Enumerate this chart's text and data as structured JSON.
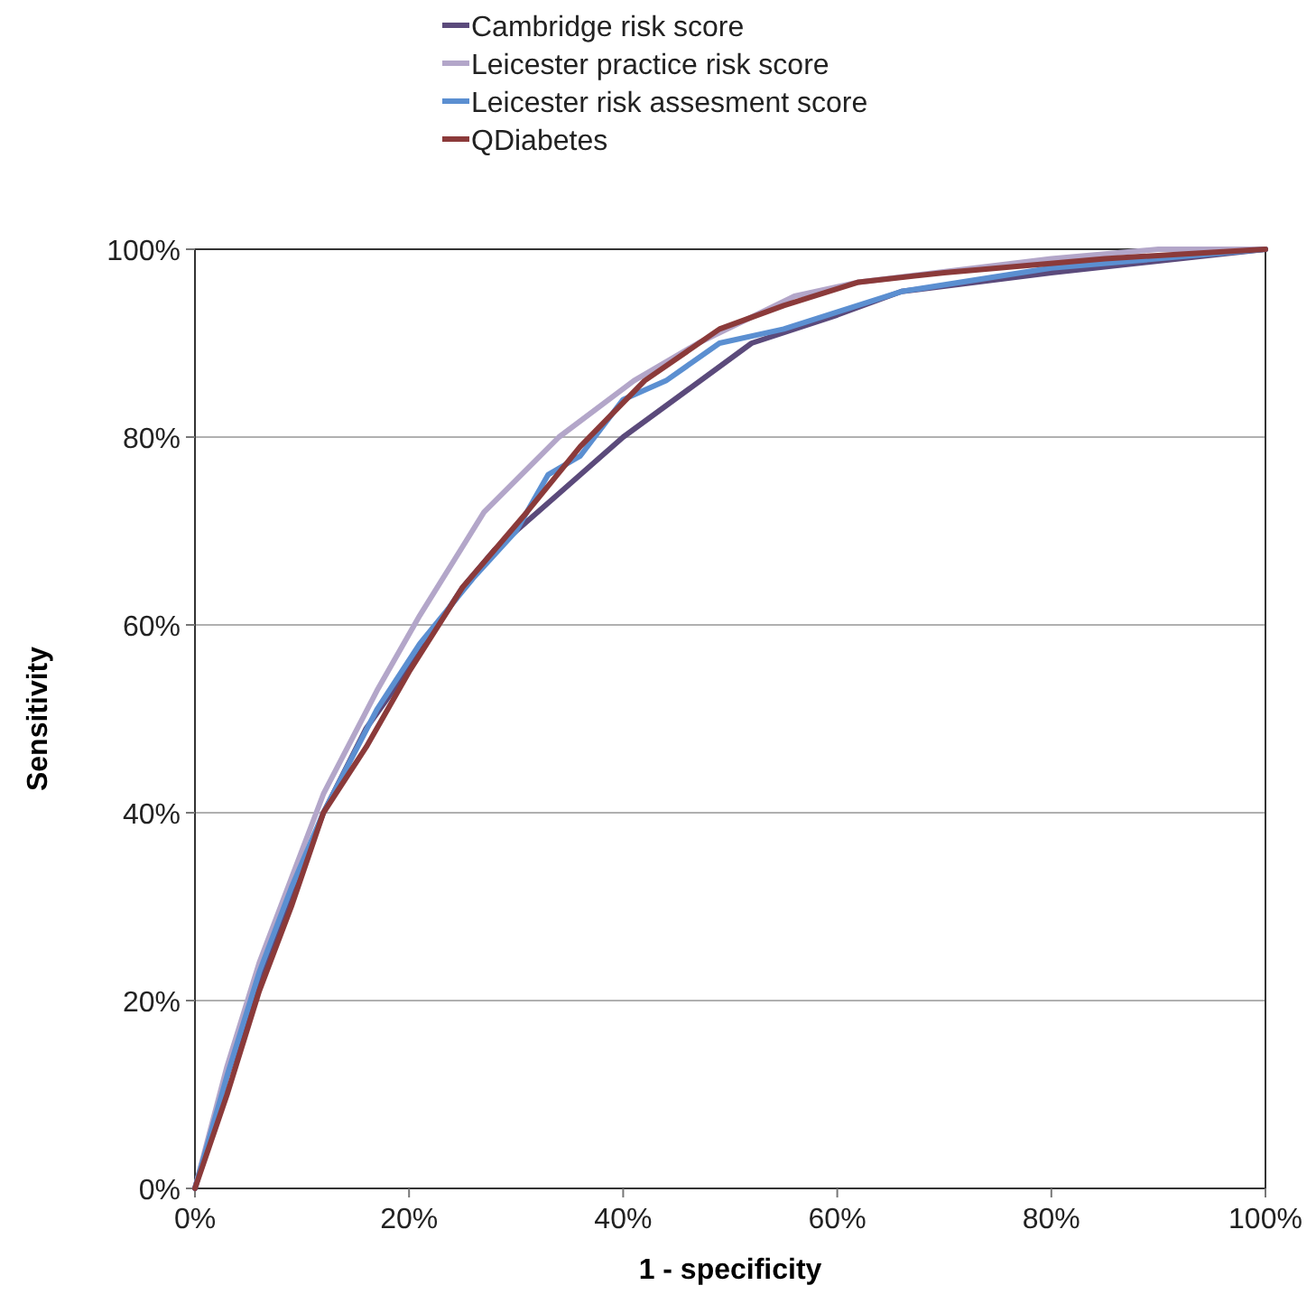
{
  "chart_data": {
    "type": "line",
    "xlabel": "1 - specificity",
    "ylabel": "Sensitivity",
    "legend": "top",
    "grid": "y",
    "xlim": [
      0,
      100
    ],
    "ylim": [
      0,
      100
    ],
    "xticks": [
      {
        "value": 0,
        "label": "0%"
      },
      {
        "value": 20,
        "label": "20%"
      },
      {
        "value": 40,
        "label": "40%"
      },
      {
        "value": 60,
        "label": "60%"
      },
      {
        "value": 80,
        "label": "80%"
      },
      {
        "value": 100,
        "label": "100%"
      }
    ],
    "yticks": [
      {
        "value": 0,
        "label": "0%"
      },
      {
        "value": 20,
        "label": "20%"
      },
      {
        "value": 40,
        "label": "40%"
      },
      {
        "value": 60,
        "label": "60%"
      },
      {
        "value": 80,
        "label": "80%"
      },
      {
        "value": 100,
        "label": "100%"
      }
    ],
    "series": [
      {
        "name": "Cambridge risk score",
        "color": "#5b4a7b",
        "x": [
          0,
          3,
          6,
          9,
          12,
          16,
          21,
          25,
          28,
          34,
          40,
          46,
          52,
          60,
          66,
          80,
          100
        ],
        "values": [
          0,
          12,
          22,
          31,
          40,
          49,
          57,
          64,
          68,
          74,
          80,
          85,
          90,
          93,
          95.5,
          97.5,
          100
        ]
      },
      {
        "name": "Leicester practice risk score",
        "color": "#b3a6c9",
        "x": [
          0,
          3,
          6,
          9,
          12,
          17,
          21,
          27,
          34,
          41,
          47,
          56,
          62,
          80,
          90,
          100
        ],
        "values": [
          0,
          13,
          24,
          33,
          42,
          53,
          61,
          72,
          80,
          86,
          90,
          95,
          96.5,
          99,
          100,
          100
        ]
      },
      {
        "name": "Leicester risk assesment score",
        "color": "#5b8fd1",
        "x": [
          0,
          3,
          6,
          9,
          12,
          17,
          21,
          26,
          30,
          33,
          36,
          40,
          44,
          49,
          55,
          66,
          80,
          100
        ],
        "values": [
          0,
          12,
          23,
          32,
          40,
          51,
          58,
          65,
          70,
          76,
          78,
          84,
          86,
          90,
          91.5,
          95.5,
          98,
          100
        ]
      },
      {
        "name": "QDiabetes",
        "color": "#8b3a3a",
        "x": [
          0,
          3,
          6,
          9,
          12,
          16,
          20,
          25,
          31,
          36,
          42,
          49,
          55,
          62,
          70,
          85,
          100
        ],
        "values": [
          0,
          10,
          21,
          30,
          40,
          47,
          55,
          64,
          72,
          79,
          86,
          91.5,
          94,
          96.5,
          97.5,
          99,
          100
        ]
      }
    ]
  }
}
